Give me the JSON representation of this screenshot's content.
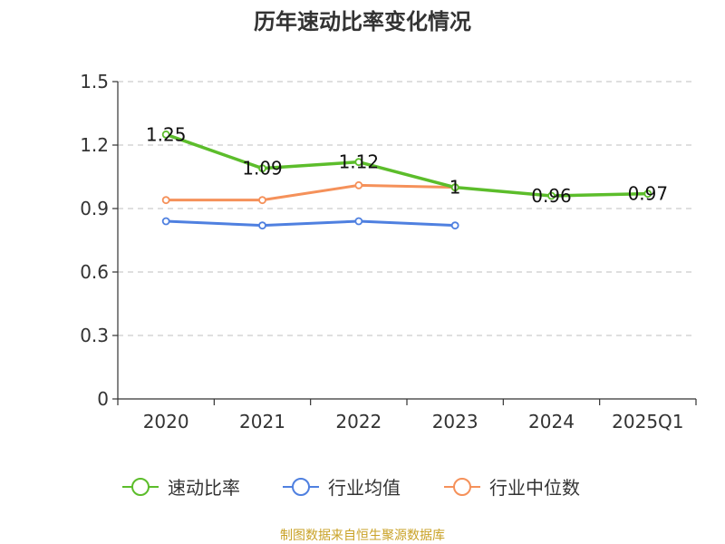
{
  "chart_data": {
    "type": "line",
    "title": "历年速动比率变化情况",
    "categories": [
      "2020",
      "2021",
      "2022",
      "2023",
      "2024",
      "2025Q1"
    ],
    "ylim": [
      0,
      1.5
    ],
    "yticks": [
      "0",
      "0.3",
      "0.6",
      "0.9",
      "1.2",
      "1.5"
    ],
    "grid": true,
    "legend_position": "bottom",
    "series": [
      {
        "name": "速动比率",
        "color": "#5cbd2b",
        "values": [
          1.25,
          1.09,
          1.12,
          1.0,
          0.96,
          0.97
        ],
        "labels": [
          "1.25",
          "1.09",
          "1.12",
          "1",
          "0.96",
          "0.97"
        ]
      },
      {
        "name": "行业均值",
        "color": "#4f80e0",
        "values": [
          0.84,
          0.82,
          0.84,
          0.82,
          null,
          null
        ]
      },
      {
        "name": "行业中位数",
        "color": "#f5915a",
        "values": [
          0.94,
          0.94,
          1.01,
          1.0,
          null,
          null
        ]
      }
    ]
  },
  "source": {
    "text": "制图数据来自恒生聚源数据库",
    "color": "#c9a227"
  }
}
